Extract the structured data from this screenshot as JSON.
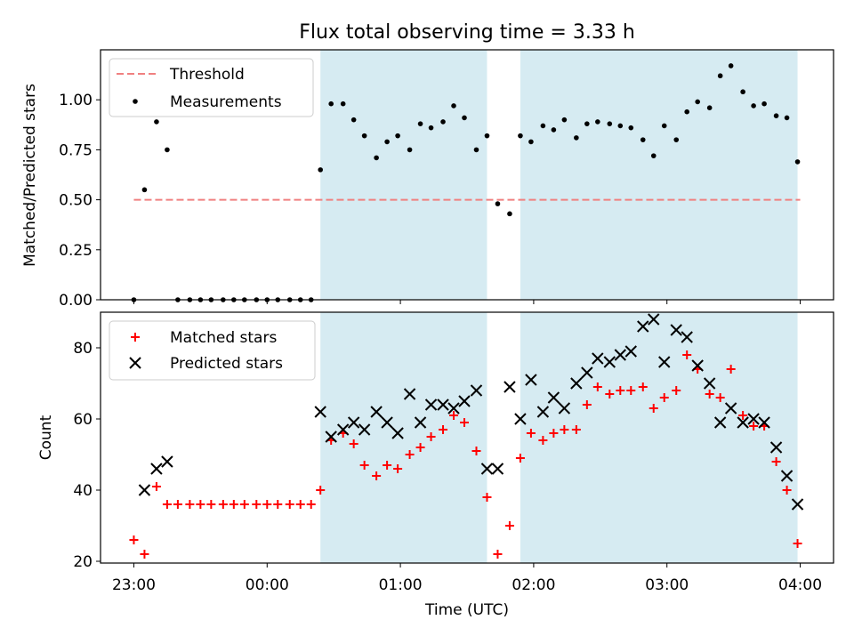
{
  "title": "Flux total observing time = 3.33 h",
  "x_axis": {
    "label": "Time (UTC)",
    "range_hours": [
      22.75,
      28.25
    ],
    "ticks": [
      {
        "value": 23.0,
        "label": "23:00"
      },
      {
        "value": 24.0,
        "label": "00:00"
      },
      {
        "value": 25.0,
        "label": "01:00"
      },
      {
        "value": 26.0,
        "label": "02:00"
      },
      {
        "value": 27.0,
        "label": "03:00"
      },
      {
        "value": 28.0,
        "label": "04:00"
      }
    ]
  },
  "shaded_intervals_hours": [
    [
      24.4,
      25.65
    ],
    [
      25.9,
      27.98
    ]
  ],
  "colors": {
    "shade": "#add8e6",
    "threshold": "#f08080",
    "measurements": "#000000",
    "matched": "#ff0000",
    "predicted": "#000000"
  },
  "chart_data": [
    {
      "type": "scatter",
      "title": "Flux total observing time = 3.33 h",
      "xlabel": "",
      "ylabel": "Matched/Predicted stars",
      "ylim": [
        0,
        1.25
      ],
      "yticks": [
        "0.00",
        "0.25",
        "0.50",
        "0.75",
        "1.00"
      ],
      "ytick_values": [
        0,
        0.25,
        0.5,
        0.75,
        1.0
      ],
      "legend": {
        "position": "top-left",
        "entries": [
          "Threshold",
          "Measurements"
        ]
      },
      "threshold": {
        "name": "Threshold",
        "value": 0.5,
        "x_range": [
          23.0,
          28.0
        ]
      },
      "series": [
        {
          "name": "Measurements",
          "marker": "dot",
          "x": [
            23.0,
            23.08,
            23.17,
            23.25,
            23.33,
            23.42,
            23.5,
            23.58,
            23.67,
            23.75,
            23.83,
            23.92,
            24.0,
            24.08,
            24.17,
            24.25,
            24.33,
            24.4,
            24.48,
            24.57,
            24.65,
            24.73,
            24.82,
            24.9,
            24.98,
            25.07,
            25.15,
            25.23,
            25.32,
            25.4,
            25.48,
            25.57,
            25.65,
            25.73,
            25.82,
            25.9,
            25.98,
            26.07,
            26.15,
            26.23,
            26.32,
            26.4,
            26.48,
            26.57,
            26.65,
            26.73,
            26.82,
            26.9,
            26.98,
            27.07,
            27.15,
            27.23,
            27.32,
            27.4,
            27.48,
            27.57,
            27.65,
            27.73,
            27.82,
            27.9,
            27.98
          ],
          "y": [
            0.0,
            0.55,
            0.89,
            0.75,
            0.0,
            0.0,
            0.0,
            0.0,
            0.0,
            0.0,
            0.0,
            0.0,
            0.0,
            0.0,
            0.0,
            0.0,
            0.0,
            0.65,
            0.98,
            0.98,
            0.9,
            0.82,
            0.71,
            0.79,
            0.82,
            0.75,
            0.88,
            0.86,
            0.89,
            0.97,
            0.91,
            0.75,
            0.82,
            0.48,
            0.43,
            0.82,
            0.79,
            0.87,
            0.85,
            0.9,
            0.81,
            0.88,
            0.89,
            0.88,
            0.87,
            0.86,
            0.8,
            0.72,
            0.87,
            0.8,
            0.94,
            0.99,
            0.96,
            1.12,
            1.17,
            1.04,
            0.97,
            0.98,
            0.92,
            0.91,
            0.69
          ]
        }
      ]
    },
    {
      "type": "scatter",
      "title": "",
      "xlabel": "Time (UTC)",
      "ylabel": "Count",
      "ylim": [
        19.5,
        90
      ],
      "yticks": [
        "20",
        "40",
        "60",
        "80"
      ],
      "ytick_values": [
        20,
        40,
        60,
        80
      ],
      "legend": {
        "position": "top-left",
        "entries": [
          "Matched stars",
          "Predicted stars"
        ]
      },
      "series": [
        {
          "name": "Matched stars",
          "marker": "plus",
          "x": [
            23.0,
            23.08,
            23.17,
            23.25,
            23.33,
            23.42,
            23.5,
            23.58,
            23.67,
            23.75,
            23.83,
            23.92,
            24.0,
            24.08,
            24.17,
            24.25,
            24.33,
            24.4,
            24.48,
            24.57,
            24.65,
            24.73,
            24.82,
            24.9,
            24.98,
            25.07,
            25.15,
            25.23,
            25.32,
            25.4,
            25.48,
            25.57,
            25.65,
            25.73,
            25.82,
            25.9,
            25.98,
            26.07,
            26.15,
            26.23,
            26.32,
            26.4,
            26.48,
            26.57,
            26.65,
            26.73,
            26.82,
            26.9,
            26.98,
            27.07,
            27.15,
            27.23,
            27.32,
            27.4,
            27.48,
            27.57,
            27.65,
            27.73,
            27.82,
            27.9,
            27.98
          ],
          "y": [
            26,
            22,
            41,
            36,
            36,
            36,
            36,
            36,
            36,
            36,
            36,
            36,
            36,
            36,
            36,
            36,
            36,
            40,
            54,
            56,
            53,
            47,
            44,
            47,
            46,
            50,
            52,
            55,
            57,
            61,
            59,
            51,
            38,
            22,
            30,
            49,
            56,
            54,
            56,
            57,
            57,
            64,
            69,
            67,
            68,
            68,
            69,
            63,
            66,
            68,
            78,
            74,
            67,
            66,
            74,
            61,
            58,
            58,
            48,
            40,
            25
          ]
        },
        {
          "name": "Predicted stars",
          "marker": "x",
          "x": [
            23.08,
            23.17,
            23.25,
            24.4,
            24.48,
            24.57,
            24.65,
            24.73,
            24.82,
            24.9,
            24.98,
            25.07,
            25.15,
            25.23,
            25.32,
            25.4,
            25.48,
            25.57,
            25.65,
            25.73,
            25.82,
            25.9,
            25.98,
            26.07,
            26.15,
            26.23,
            26.32,
            26.4,
            26.48,
            26.57,
            26.65,
            26.73,
            26.82,
            26.9,
            26.98,
            27.07,
            27.15,
            27.23,
            27.32,
            27.4,
            27.48,
            27.57,
            27.65,
            27.73,
            27.82,
            27.9,
            27.98
          ],
          "y": [
            40,
            46,
            48,
            62,
            55,
            57,
            59,
            57,
            62,
            59,
            56,
            67,
            59,
            64,
            64,
            63,
            65,
            68,
            46,
            46,
            69,
            60,
            71,
            62,
            66,
            63,
            70,
            73,
            77,
            76,
            78,
            79,
            86,
            88,
            76,
            85,
            83,
            75,
            70,
            59,
            63,
            59,
            60,
            59,
            52,
            44,
            36
          ]
        }
      ]
    }
  ]
}
